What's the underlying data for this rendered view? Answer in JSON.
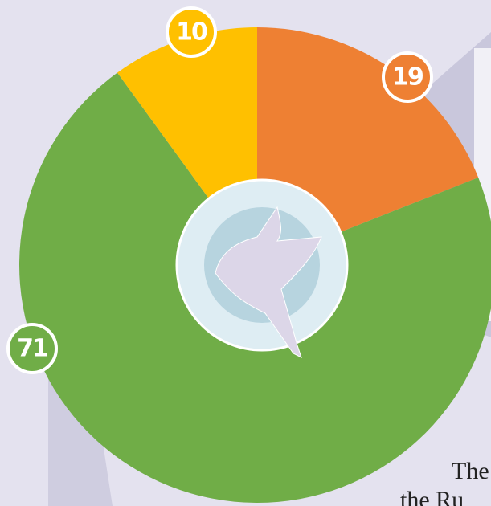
{
  "chart_data": {
    "type": "pie",
    "categories": [
      null,
      null,
      null
    ],
    "values": [
      19,
      71,
      10
    ],
    "colors": [
      "#ee8033",
      "#70ad47",
      "#ffc000"
    ],
    "annotations": [
      "The",
      "the Ru"
    ]
  }
}
